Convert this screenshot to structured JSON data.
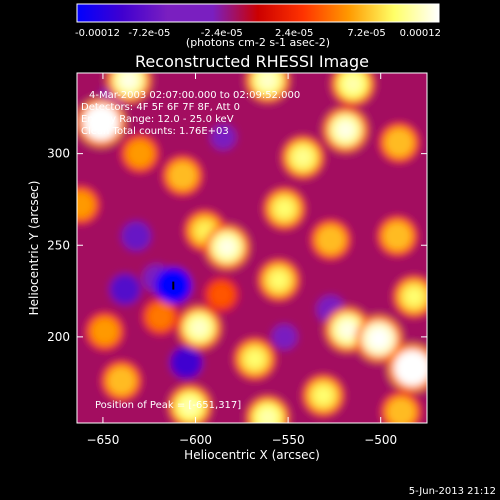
{
  "chart_data": {
    "type": "heatmap",
    "title": "Reconstructed RHESSI Image",
    "xlabel": "Heliocentric X (arcsec)",
    "ylabel": "Heliocentric Y (arcsec)",
    "xlim": [
      -664,
      -475
    ],
    "ylim": [
      153,
      344
    ],
    "x_ticks": [
      -650,
      -600,
      -550,
      -500
    ],
    "y_ticks": [
      200,
      250,
      300
    ],
    "colorbar": {
      "label": "(photons cm-2 s-1 asec-2)",
      "range": [
        -0.00012,
        0.00012
      ],
      "tick_labels": [
        "-0.00012",
        "-7.2e-05",
        "-2.4e-05",
        "2.4e-05",
        "7.2e-05",
        "0.00012"
      ],
      "stops": [
        "#0000ff",
        "#4000d0",
        "#7a1fc0",
        "#7a1fc0",
        "#cc0000",
        "#ff3300",
        "#ff9900",
        "#ffff66",
        "#ffffff"
      ]
    },
    "annotations": [
      "4-Mar-2003 02:07:00.000 to 02:09:52.000",
      "Detectors: 4F 5F 6F 7F 8F, Att 0",
      "Energy Range: 12.0 - 25.0 keV",
      "Clean     Total counts: 1.76E+03"
    ],
    "peak_label": "Position of Peak = [-651,317]",
    "peak": [
      -651,
      317
    ],
    "background_value": -1.5e-05,
    "blobs": [
      {
        "x": -651,
        "y": 317,
        "v": 0.00012
      },
      {
        "x": -636,
        "y": 340,
        "v": 0.0001
      },
      {
        "x": -561,
        "y": 340,
        "v": 9.5e-05
      },
      {
        "x": -515,
        "y": 338,
        "v": 9e-05
      },
      {
        "x": -519,
        "y": 313,
        "v": 0.0001
      },
      {
        "x": -542,
        "y": 298,
        "v": 8.5e-05
      },
      {
        "x": -490,
        "y": 306,
        "v": 7e-05
      },
      {
        "x": -630,
        "y": 300,
        "v": 6e-05
      },
      {
        "x": -607,
        "y": 288,
        "v": 7e-05
      },
      {
        "x": -662,
        "y": 272,
        "v": 6e-05
      },
      {
        "x": -595,
        "y": 258,
        "v": 7.5e-05
      },
      {
        "x": -583,
        "y": 249,
        "v": 0.0001
      },
      {
        "x": -552,
        "y": 270,
        "v": 8e-05
      },
      {
        "x": -527,
        "y": 253,
        "v": 7e-05
      },
      {
        "x": -491,
        "y": 255,
        "v": 7e-05
      },
      {
        "x": -555,
        "y": 231,
        "v": 8e-05
      },
      {
        "x": -598,
        "y": 205,
        "v": 9.5e-05
      },
      {
        "x": -619,
        "y": 211,
        "v": 5e-05
      },
      {
        "x": -649,
        "y": 203,
        "v": 6e-05
      },
      {
        "x": -640,
        "y": 176,
        "v": 7e-05
      },
      {
        "x": -603,
        "y": 162,
        "v": 9e-05
      },
      {
        "x": -568,
        "y": 188,
        "v": 8e-05
      },
      {
        "x": -561,
        "y": 156,
        "v": 9e-05
      },
      {
        "x": -531,
        "y": 168,
        "v": 8e-05
      },
      {
        "x": -518,
        "y": 204,
        "v": 0.0001
      },
      {
        "x": -501,
        "y": 199,
        "v": 0.00011
      },
      {
        "x": -483,
        "y": 183,
        "v": 0.00012
      },
      {
        "x": -482,
        "y": 222,
        "v": 8e-05
      },
      {
        "x": -489,
        "y": 159,
        "v": 7e-05
      },
      {
        "x": -586,
        "y": 223,
        "v": 4e-05
      },
      {
        "x": -612,
        "y": 228,
        "v": -0.00012
      },
      {
        "x": -621,
        "y": 232,
        "v": -6e-05
      },
      {
        "x": -605,
        "y": 186,
        "v": -9e-05
      },
      {
        "x": -632,
        "y": 255,
        "v": -7e-05
      },
      {
        "x": -638,
        "y": 226,
        "v": -8e-05
      },
      {
        "x": -527,
        "y": 215,
        "v": -6e-05
      },
      {
        "x": -552,
        "y": 200,
        "v": -4e-05
      },
      {
        "x": -645,
        "y": 330,
        "v": -4e-05
      },
      {
        "x": -585,
        "y": 309,
        "v": -4e-05
      }
    ]
  },
  "footer": {
    "date": "5-Jun-2013 21:12"
  }
}
